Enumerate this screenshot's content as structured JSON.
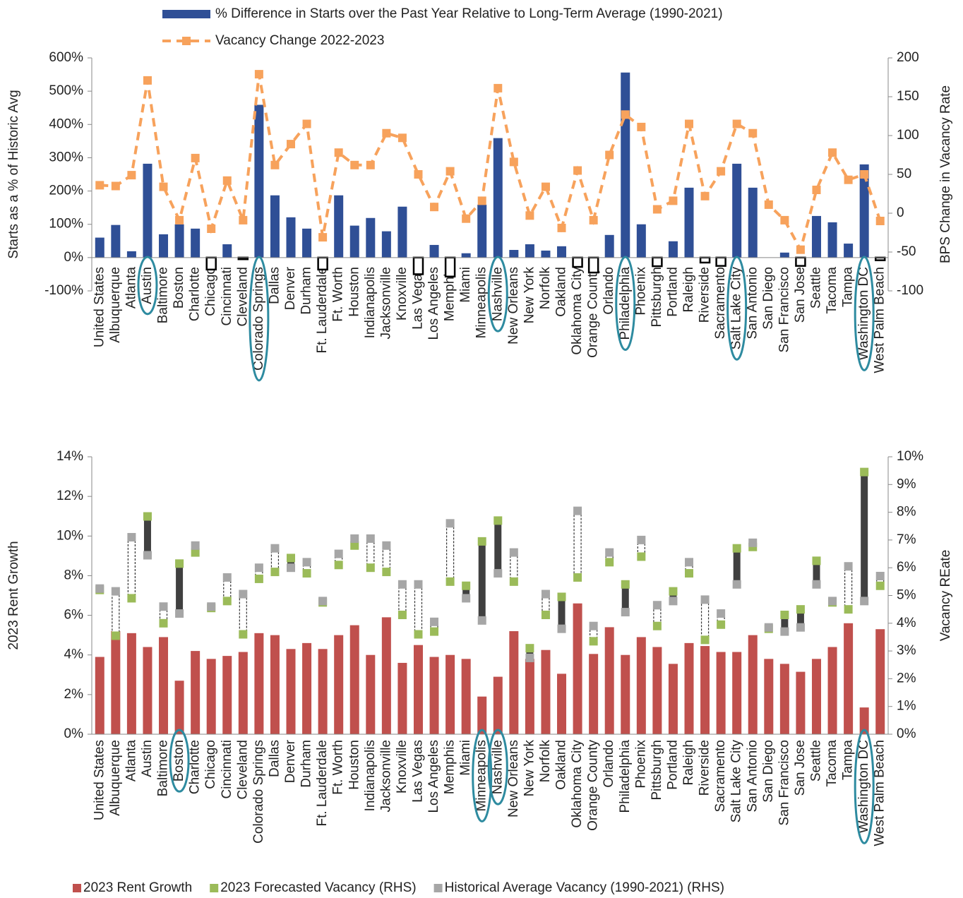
{
  "chart_data": [
    {
      "type": "combo",
      "ylabel": "Starts as a % of Historic Avg",
      "y2label": "BPS Change in Vacancy Rate",
      "categories": [
        "United States",
        "Albuquerque",
        "Atlanta",
        "Austin",
        "Baltimore",
        "Boston",
        "Charlotte",
        "Chicago",
        "Cincinnati",
        "Cleveland",
        "Colorado Springs",
        "Dallas",
        "Denver",
        "Durham",
        "Ft. Lauderdale",
        "Ft. Worth",
        "Houston",
        "Indianapolis",
        "Jacksonville",
        "Knoxville",
        "Las Vegas",
        "Los Angeles",
        "Memphis",
        "Miami",
        "Minneapolis",
        "Nashville",
        "New Orleans",
        "New York",
        "Norfolk",
        "Oakland",
        "Oklahoma City",
        "Orange County",
        "Orlando",
        "Philadelphia",
        "Phoenix",
        "Pittsburgh",
        "Portland",
        "Raleigh",
        "Riverside",
        "Sacramento",
        "Salt Lake City",
        "San Antonio",
        "San Diego",
        "San Francisco",
        "San Jose",
        "Seattle",
        "Tacoma",
        "Tampa",
        "Washington DC",
        "West Palm Beach"
      ],
      "series": [
        {
          "name": "% Difference in Starts over the Past Year Relative to Long-Term Average (1990-2021)",
          "kind": "bar",
          "color": "#2f4f96",
          "negative_color": "#ffffff",
          "values": [
            60,
            98,
            19,
            282,
            70,
            100,
            87,
            -36,
            40,
            -5,
            459,
            187,
            121,
            87,
            -36,
            187,
            96,
            119,
            79,
            153,
            -50,
            38,
            -57,
            13,
            159,
            359,
            23,
            40,
            21,
            34,
            -28,
            -45,
            68,
            556,
            100,
            -26,
            49,
            210,
            -15,
            -25,
            282,
            210,
            0,
            15,
            -25,
            125,
            106,
            42,
            280,
            -8
          ]
        },
        {
          "name": "Vacancy Change 2022-2023",
          "kind": "line",
          "axis": "y2",
          "color": "#f7a25c",
          "dash": true,
          "values": [
            36,
            35,
            49,
            171,
            34,
            -9,
            71,
            -20,
            42,
            -9,
            179,
            62,
            89,
            115,
            -31,
            78,
            62,
            62,
            103,
            97,
            50,
            8,
            54,
            -7,
            16,
            161,
            66,
            -3,
            34,
            -19,
            55,
            -9,
            75,
            127,
            111,
            5,
            16,
            115,
            22,
            54,
            115,
            103,
            11,
            -9,
            -47,
            30,
            78,
            43,
            50,
            -10
          ]
        }
      ],
      "ylim": [
        -100,
        600
      ],
      "yticks": [
        {
          "value": -100,
          "label": "-100%"
        },
        {
          "value": 0,
          "label": "0%"
        },
        {
          "value": 100,
          "label": "100%"
        },
        {
          "value": 200,
          "label": "200%"
        },
        {
          "value": 300,
          "label": "300%"
        },
        {
          "value": 400,
          "label": "400%"
        },
        {
          "value": 500,
          "label": "500%"
        },
        {
          "value": 600,
          "label": "600%"
        }
      ],
      "y2lim": [
        -100,
        200
      ],
      "y2ticks": [
        -100,
        -50,
        0,
        50,
        100,
        150,
        200
      ],
      "legend": "top",
      "highlight": [
        3,
        10,
        25,
        33,
        40,
        48
      ]
    },
    {
      "type": "combo",
      "ylabel": "2023 Rent Growth",
      "y2label": "Vacancy REate",
      "categories": [
        "United States",
        "Albuquerque",
        "Atlanta",
        "Austin",
        "Baltimore",
        "Boston",
        "Charlotte",
        "Chicago",
        "Cincinnati",
        "Cleveland",
        "Colorado Springs",
        "Dallas",
        "Denver",
        "Durham",
        "Ft. Lauderdale",
        "Ft. Worth",
        "Houston",
        "Indianapolis",
        "Jacksonville",
        "Knoxville",
        "Las Vegas",
        "Los Angeles",
        "Memphis",
        "Miami",
        "Minneapolis",
        "Nashville",
        "New Orleans",
        "New York",
        "Norfolk",
        "Oakland",
        "Oklahoma City",
        "Orange County",
        "Orlando",
        "Philadelphia",
        "Phoenix",
        "Pittsburgh",
        "Portland",
        "Raleigh",
        "Riverside",
        "Sacramento",
        "Salt Lake City",
        "San Antonio",
        "San Diego",
        "San Francisco",
        "San Jose",
        "Seattle",
        "Tacoma",
        "Tampa",
        "Washington DC",
        "West Palm Beach"
      ],
      "series": [
        {
          "name": "2023 Rent Growth",
          "kind": "bar",
          "color": "#c0504d",
          "values": [
            3.9,
            5.2,
            5.1,
            4.4,
            4.9,
            2.7,
            4.2,
            3.8,
            3.95,
            4.15,
            5.1,
            5.0,
            4.3,
            4.6,
            4.3,
            5.0,
            5.5,
            4.0,
            5.9,
            3.6,
            4.5,
            3.9,
            4.0,
            3.8,
            1.9,
            2.9,
            5.2,
            3.8,
            4.25,
            3.05,
            6.6,
            4.05,
            5.4,
            4.0,
            4.9,
            4.4,
            3.55,
            4.6,
            4.45,
            4.15,
            4.15,
            5.0,
            3.8,
            3.55,
            3.15,
            3.8,
            4.4,
            5.6,
            1.35,
            5.3
          ]
        },
        {
          "name": "2023 Forecasted Vacancy (RHS)",
          "kind": "marker",
          "axis": "y2",
          "color": "#9bbb59",
          "values": [
            5.2,
            3.55,
            4.9,
            7.85,
            4.0,
            6.15,
            6.55,
            4.55,
            4.8,
            3.6,
            5.6,
            5.85,
            6.35,
            5.8,
            4.75,
            6.1,
            6.8,
            6.0,
            5.85,
            4.3,
            3.6,
            3.7,
            5.5,
            5.35,
            6.95,
            7.7,
            5.5,
            3.1,
            4.3,
            4.95,
            5.65,
            3.35,
            6.2,
            5.4,
            6.4,
            3.9,
            5.15,
            5.8,
            3.4,
            3.95,
            6.7,
            6.75,
            3.8,
            4.3,
            4.5,
            6.25,
            4.75,
            4.5,
            9.45,
            5.35
          ]
        },
        {
          "name": "Historical Average Vacancy (1990-2021) (RHS)",
          "kind": "marker",
          "axis": "y2",
          "color": "#a6a6a6",
          "values": [
            5.25,
            5.15,
            7.1,
            6.45,
            4.6,
            4.35,
            6.8,
            4.6,
            5.65,
            5.05,
            6.0,
            6.7,
            6.0,
            6.2,
            4.8,
            6.5,
            7.05,
            7.05,
            6.8,
            5.4,
            5.4,
            4.05,
            7.6,
            4.9,
            4.1,
            5.8,
            6.55,
            2.75,
            5.05,
            3.8,
            8.05,
            3.9,
            6.55,
            4.4,
            7.0,
            4.65,
            4.8,
            6.2,
            4.85,
            4.35,
            5.4,
            6.9,
            3.85,
            3.7,
            3.85,
            5.4,
            4.8,
            6.05,
            4.8,
            5.7
          ]
        }
      ],
      "ylim": [
        0,
        14
      ],
      "yticks": [
        {
          "value": 0,
          "label": "0%"
        },
        {
          "value": 2,
          "label": "2%"
        },
        {
          "value": 4,
          "label": "4%"
        },
        {
          "value": 6,
          "label": "6%"
        },
        {
          "value": 8,
          "label": "8%"
        },
        {
          "value": 10,
          "label": "10%"
        },
        {
          "value": 12,
          "label": "12%"
        },
        {
          "value": 14,
          "label": "14%"
        }
      ],
      "y2lim": [
        0,
        10
      ],
      "y2ticks": [
        {
          "value": 0,
          "label": "0%"
        },
        {
          "value": 1,
          "label": "1%"
        },
        {
          "value": 2,
          "label": "2%"
        },
        {
          "value": 3,
          "label": "3%"
        },
        {
          "value": 4,
          "label": "4%"
        },
        {
          "value": 5,
          "label": "5%"
        },
        {
          "value": 6,
          "label": "6%"
        },
        {
          "value": 7,
          "label": "7%"
        },
        {
          "value": 8,
          "label": "8%"
        },
        {
          "value": 9,
          "label": "9%"
        },
        {
          "value": 10,
          "label": "10%"
        }
      ],
      "range_connector": {
        "up_color": "#404040",
        "down_color": "#ffffff"
      },
      "legend": "bottom",
      "highlight": [
        5,
        24,
        25,
        48
      ]
    }
  ]
}
